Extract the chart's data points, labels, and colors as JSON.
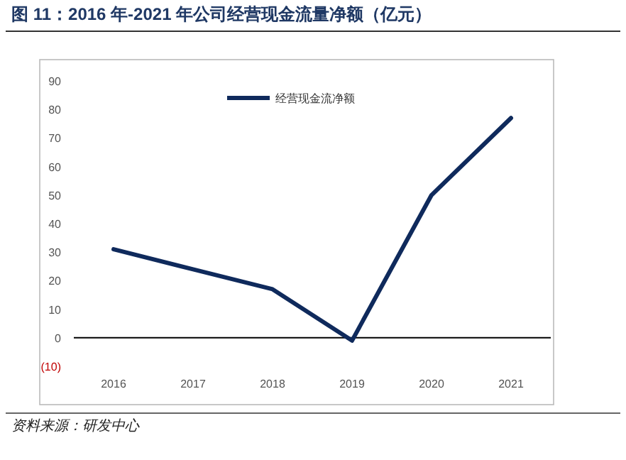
{
  "chart_data": {
    "type": "line",
    "title": "图 11：2016 年-2021 年公司经营现金流量净额（亿元）",
    "categories": [
      "2016",
      "2017",
      "2018",
      "2019",
      "2020",
      "2021"
    ],
    "series": [
      {
        "name": "经营现金流净额",
        "color": "#0f2a5c",
        "values": [
          31,
          24,
          17,
          -1,
          50,
          77
        ]
      }
    ],
    "ylim": [
      -10,
      90
    ],
    "yticks": [
      {
        "value": -10,
        "label": "(10)"
      },
      0,
      10,
      20,
      30,
      40,
      50,
      60,
      70,
      80,
      90
    ],
    "ref_lines": [
      {
        "axis": "y",
        "value": 0,
        "color": "#000000"
      }
    ],
    "legend": "top",
    "grid": false,
    "marker": "none",
    "line_style": "solid",
    "annotations": [
      "资料来源：研发中心"
    ]
  }
}
